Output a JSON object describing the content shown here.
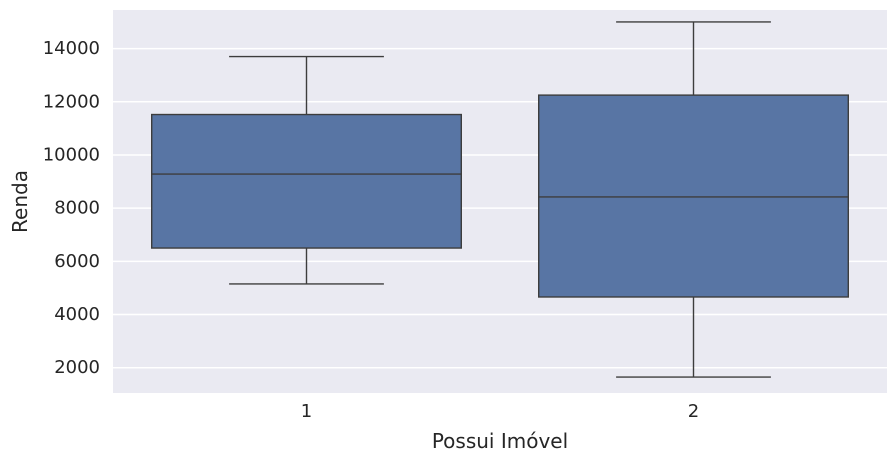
{
  "chart_data": {
    "type": "box",
    "xlabel": "Possui Imóvel",
    "ylabel": "Renda",
    "categories": [
      "1",
      "2"
    ],
    "ylim": [
      1050,
      15450
    ],
    "yticks": [
      2000,
      4000,
      6000,
      8000,
      10000,
      12000,
      14000
    ],
    "grid": true,
    "boxes": [
      {
        "category": "1",
        "whisker_low": 5150,
        "q1": 6500,
        "median": 9280,
        "q3": 11520,
        "whisker_high": 13700
      },
      {
        "category": "2",
        "whisker_low": 1650,
        "q1": 4660,
        "median": 8420,
        "q3": 12250,
        "whisker_high": 15000
      }
    ],
    "colors": {
      "background": "#eaeaf2",
      "grid": "#ffffff",
      "box_fill": "#5875a4",
      "line": "#3d3d3d",
      "text": "#262626"
    }
  }
}
